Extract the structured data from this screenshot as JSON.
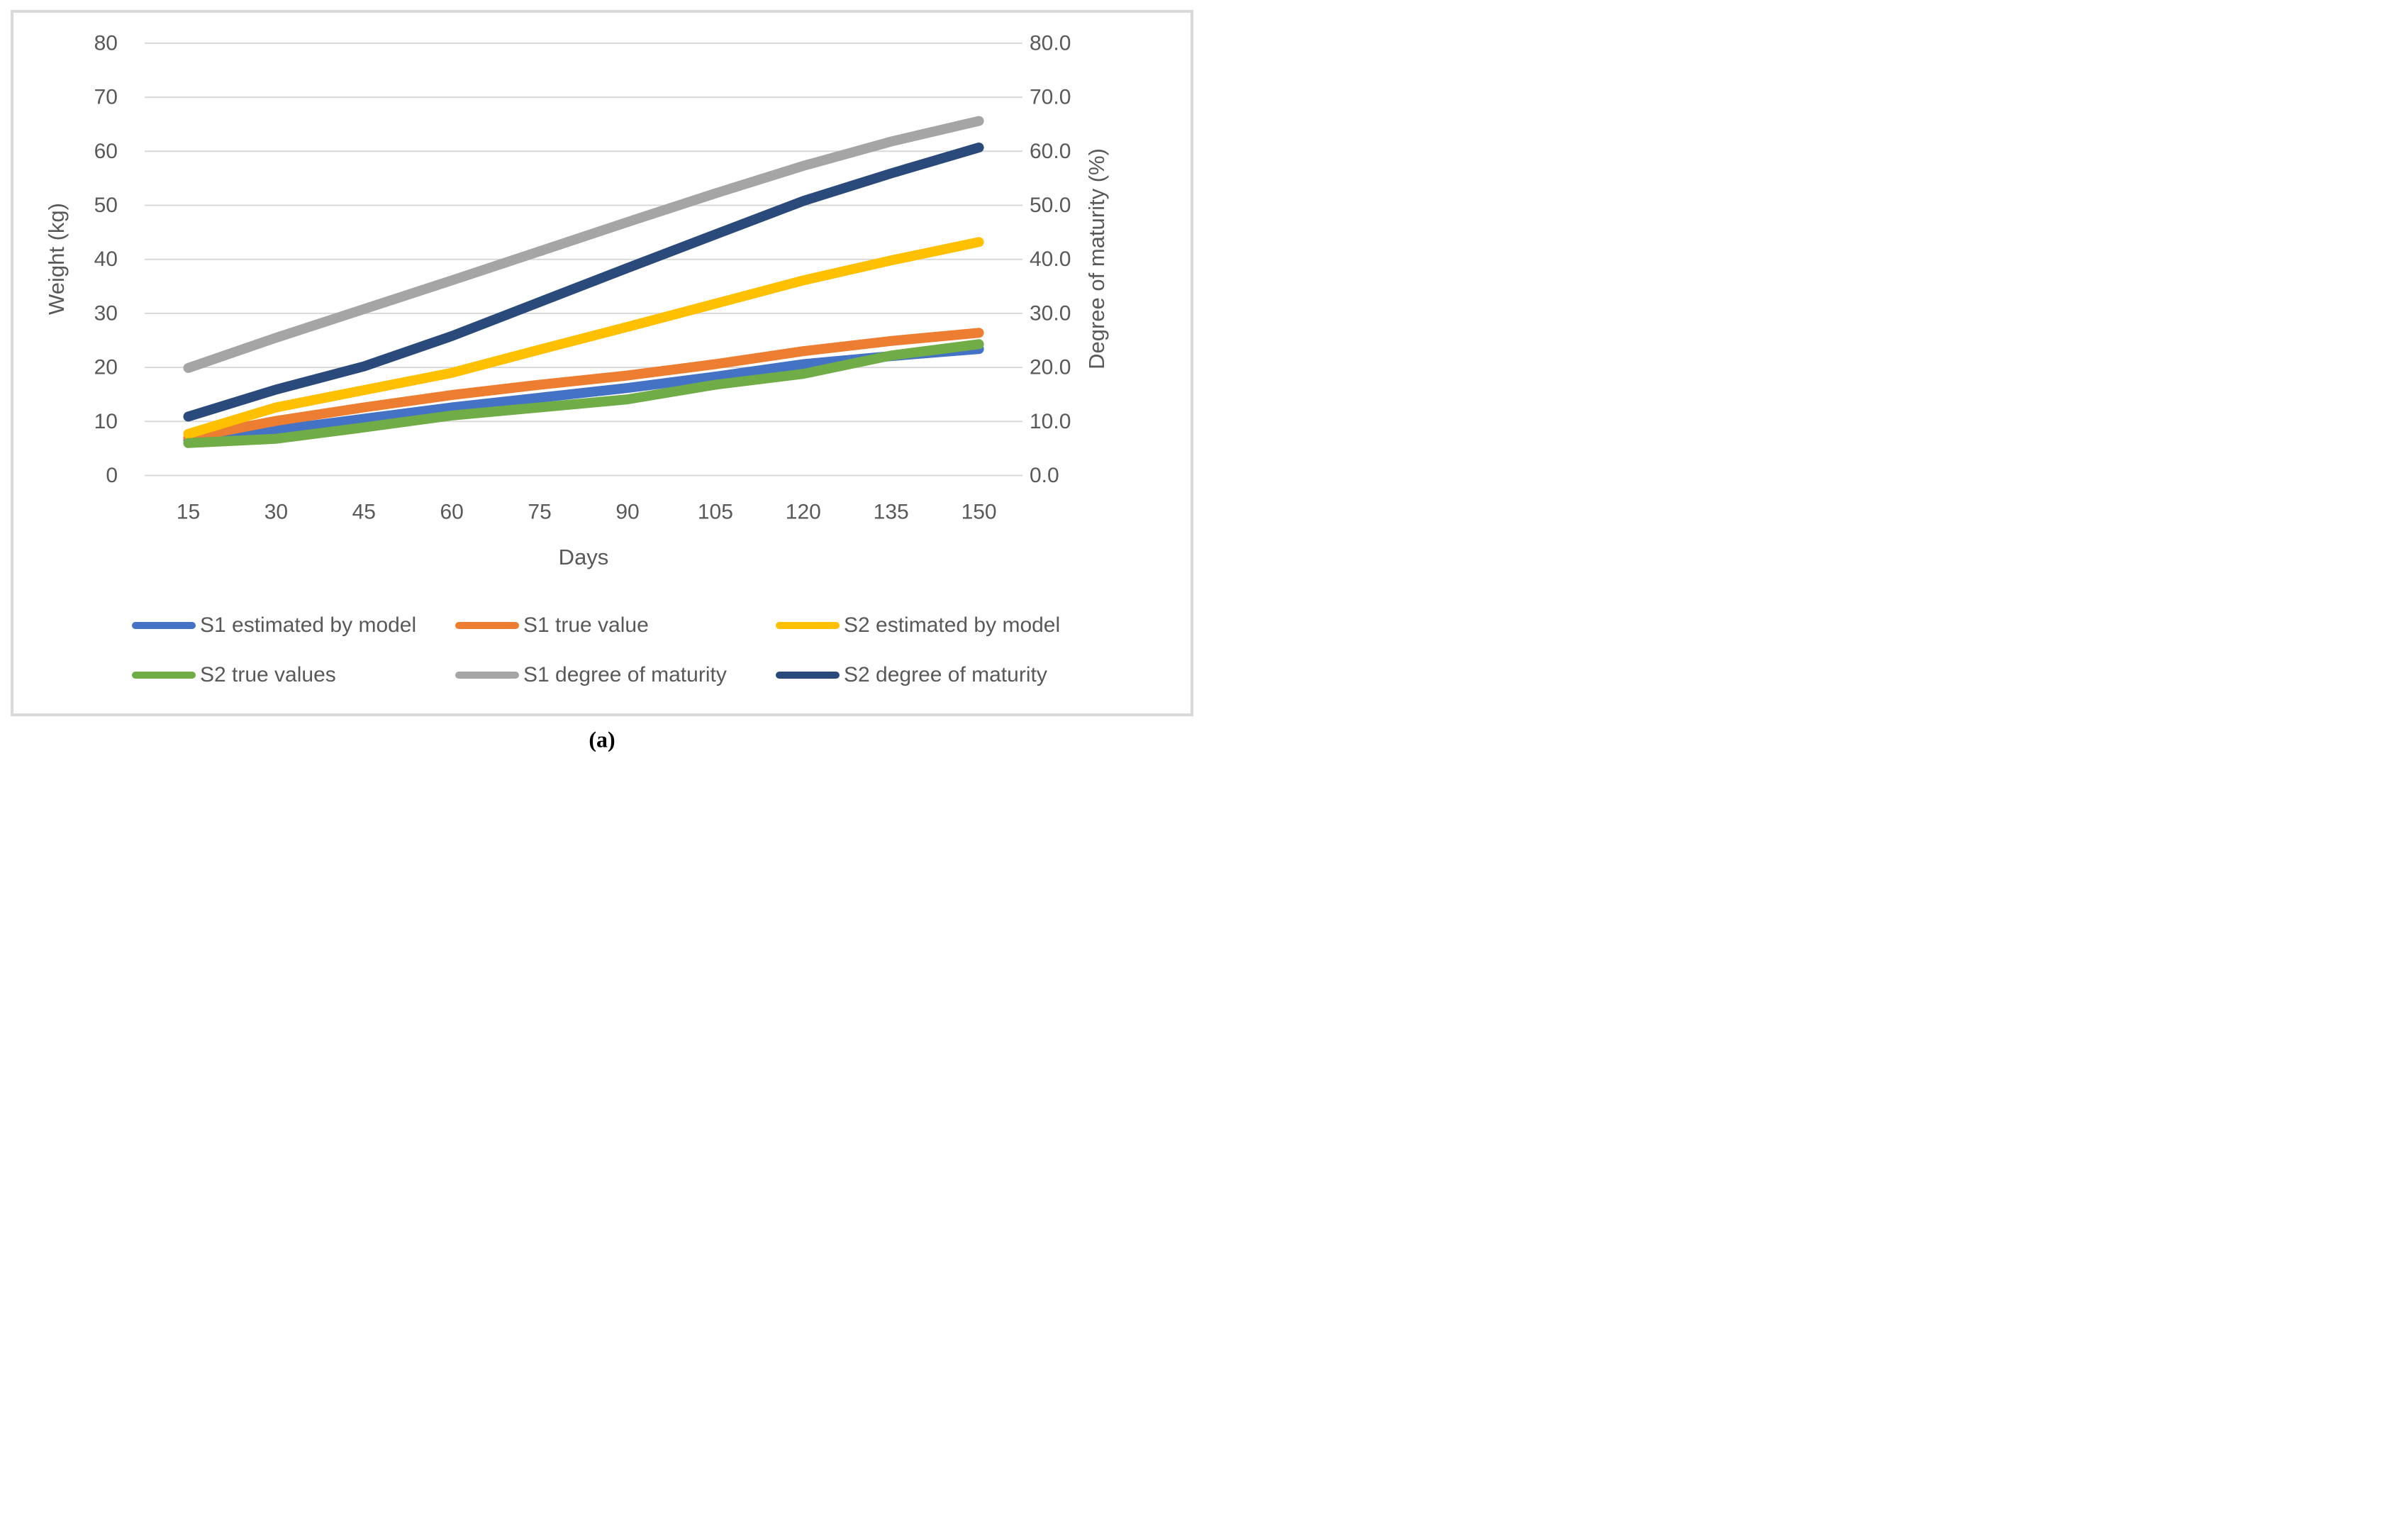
{
  "figure": {
    "caption": "(a)",
    "border_color": "#D9D9D9",
    "background": "#ffffff",
    "text_color": "#595959",
    "gridline_color": "#D9D9D9"
  },
  "chart_data": {
    "type": "line",
    "title": "",
    "xlabel": "Days",
    "ylabel_left": "Weight (kg)",
    "ylabel_right": "Degree of maturity (%)",
    "x": [
      15,
      30,
      45,
      60,
      75,
      90,
      105,
      120,
      135,
      150
    ],
    "x_tick_labels": [
      "15",
      "30",
      "45",
      "60",
      "75",
      "90",
      "105",
      "120",
      "135",
      "150"
    ],
    "y_left": {
      "min": 0,
      "max": 80,
      "step": 10,
      "tick_labels": [
        "0",
        "10",
        "20",
        "30",
        "40",
        "50",
        "60",
        "70",
        "80"
      ]
    },
    "y_right": {
      "min": 0.0,
      "max": 80.0,
      "step": 10.0,
      "tick_labels": [
        "0.0",
        "10.0",
        "20.0",
        "30.0",
        "40.0",
        "50.0",
        "60.0",
        "70.0",
        "80.0"
      ]
    },
    "grid": "horizontal",
    "legend_position": "bottom",
    "series": [
      {
        "name": "S1 estimated by model",
        "color": "#4472C4",
        "axis": "left",
        "values": [
          6.6,
          8.4,
          10.5,
          12.6,
          14.4,
          16.2,
          18.3,
          20.6,
          22.1,
          23.4
        ]
      },
      {
        "name": "S1 true value",
        "color": "#ED7D31",
        "axis": "left",
        "values": [
          7.0,
          10.1,
          12.6,
          14.9,
          16.8,
          18.5,
          20.6,
          23.0,
          24.9,
          26.4
        ]
      },
      {
        "name": "S2 estimated by model",
        "color": "#FFC000",
        "axis": "left",
        "values": [
          7.7,
          12.6,
          15.8,
          19.0,
          23.3,
          27.5,
          31.8,
          36.1,
          39.8,
          43.2
        ]
      },
      {
        "name": "S2 true values",
        "color": "#70AD47",
        "axis": "left",
        "values": [
          6.0,
          6.8,
          8.9,
          11.1,
          12.6,
          14.1,
          16.8,
          18.8,
          22.2,
          24.3
        ]
      },
      {
        "name": "S1 degree of maturity",
        "color": "#A5A5A5",
        "axis": "right",
        "values": [
          19.9,
          25.5,
          30.8,
          36.1,
          41.5,
          46.9,
          52.2,
          57.3,
          61.8,
          65.6
        ]
      },
      {
        "name": "S2 degree of maturity",
        "color": "#2A4A7B",
        "axis": "right",
        "values": [
          10.9,
          15.9,
          20.2,
          25.8,
          32.1,
          38.4,
          44.6,
          50.8,
          55.9,
          60.7
        ]
      }
    ]
  }
}
